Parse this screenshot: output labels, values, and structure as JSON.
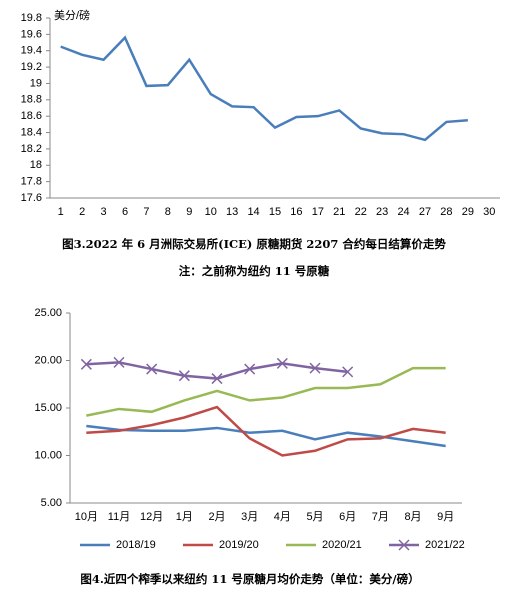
{
  "chart_data": [
    {
      "type": "line",
      "y_label": "美分/磅",
      "categories": [
        "1",
        "2",
        "3",
        "6",
        "7",
        "8",
        "9",
        "10",
        "13",
        "14",
        "15",
        "16",
        "17",
        "21",
        "22",
        "23",
        "24",
        "27",
        "28",
        "29",
        "30"
      ],
      "series": [
        {
          "name": null,
          "color": "#4a7ebb",
          "values": [
            19.45,
            19.35,
            19.29,
            19.56,
            18.97,
            18.98,
            19.29,
            18.87,
            18.72,
            18.71,
            18.46,
            18.59,
            18.6,
            18.67,
            18.45,
            18.39,
            18.38,
            18.31,
            18.53,
            18.55,
            null
          ]
        }
      ],
      "ylim": [
        17.6,
        19.8
      ],
      "yticks": [
        17.6,
        17.8,
        18,
        18.2,
        18.4,
        18.6,
        18.8,
        19,
        19.2,
        19.4,
        19.6,
        19.8
      ],
      "caption": "图3.2022 年 6 月洲际交易所(ICE) 原糖期货 2207 合约每日结算价走势",
      "note": "注：之前称为纽约 11 号原糖"
    },
    {
      "type": "line",
      "categories": [
        "10月",
        "11月",
        "12月",
        "1月",
        "2月",
        "3月",
        "4月",
        "5月",
        "6月",
        "7月",
        "8月",
        "9月"
      ],
      "series": [
        {
          "name": "2018/19",
          "color": "#4a7ebb",
          "values": [
            13.1,
            12.7,
            12.6,
            12.6,
            12.9,
            12.4,
            12.6,
            11.7,
            12.4,
            12.0,
            11.5,
            11.0
          ]
        },
        {
          "name": "2019/20",
          "color": "#be4b48",
          "values": [
            12.4,
            12.6,
            13.2,
            14.0,
            15.1,
            11.8,
            10.0,
            10.5,
            11.7,
            11.8,
            12.8,
            12.4
          ]
        },
        {
          "name": "2020/21",
          "color": "#98b954",
          "values": [
            14.2,
            14.9,
            14.6,
            15.8,
            16.8,
            15.8,
            16.1,
            17.1,
            17.1,
            17.5,
            19.2,
            19.2
          ]
        },
        {
          "name": "2021/22",
          "color": "#8064a2",
          "marker": "x",
          "values": [
            19.6,
            19.8,
            19.1,
            18.4,
            18.1,
            19.1,
            19.7,
            19.2,
            18.8,
            null,
            null,
            null
          ]
        }
      ],
      "ylim": [
        5,
        25
      ],
      "yticks": [
        {
          "value": 5,
          "label": "5.00"
        },
        {
          "value": 10,
          "label": "10.00"
        },
        {
          "value": 15,
          "label": "15.00"
        },
        {
          "value": 20,
          "label": "20.00"
        },
        {
          "value": 25,
          "label": "25.00"
        }
      ],
      "legend": "bottom",
      "caption": "图4.近四个榨季以来纽约 11 号原糖月均价走势（单位：美分/磅）"
    }
  ]
}
